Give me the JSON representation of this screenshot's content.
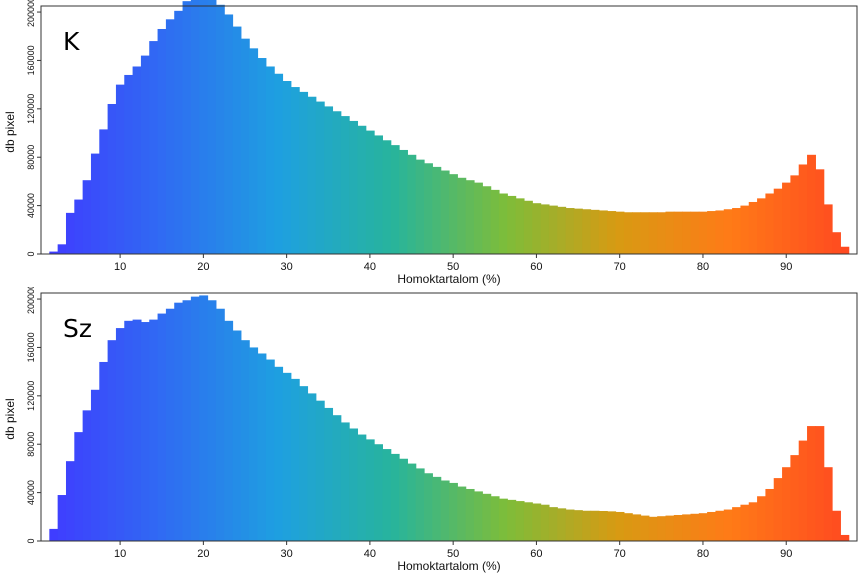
{
  "chart_data": [
    {
      "type": "bar",
      "panel_label": "K",
      "xlabel": "Homoktartalom (%)",
      "ylabel": "db pixel",
      "xlim": [
        0.5,
        98.5
      ],
      "ylim": [
        0,
        205000
      ],
      "xticks": [
        10,
        20,
        30,
        40,
        50,
        60,
        70,
        80,
        90
      ],
      "yticks": [
        0,
        40000,
        80000,
        120000,
        160000,
        200000
      ],
      "grid": false,
      "colormap": [
        "#3f3dff",
        "#2f6df2",
        "#1ea0e0",
        "#27b49c",
        "#7dbd3a",
        "#d89a13",
        "#ff7a17",
        "#ff4a20"
      ],
      "x": [
        2,
        3,
        4,
        5,
        6,
        7,
        8,
        9,
        10,
        11,
        12,
        13,
        14,
        15,
        16,
        17,
        18,
        19,
        20,
        21,
        22,
        23,
        24,
        25,
        26,
        27,
        28,
        29,
        30,
        31,
        32,
        33,
        34,
        35,
        36,
        37,
        38,
        39,
        40,
        41,
        42,
        43,
        44,
        45,
        46,
        47,
        48,
        49,
        50,
        51,
        52,
        53,
        54,
        55,
        56,
        57,
        58,
        59,
        60,
        61,
        62,
        63,
        64,
        65,
        66,
        67,
        68,
        69,
        70,
        71,
        72,
        73,
        74,
        75,
        76,
        77,
        78,
        79,
        80,
        81,
        82,
        83,
        84,
        85,
        86,
        87,
        88,
        89,
        90,
        91,
        92,
        93,
        94,
        95,
        96,
        97
      ],
      "values": [
        2000,
        8000,
        34000,
        45000,
        61000,
        83000,
        103000,
        124000,
        140000,
        148000,
        155000,
        164000,
        176000,
        186000,
        194000,
        201000,
        209000,
        216000,
        219000,
        214000,
        206000,
        198000,
        188000,
        178000,
        170000,
        162000,
        155000,
        149000,
        143000,
        138000,
        134000,
        130000,
        126000,
        122000,
        118000,
        114000,
        110000,
        106000,
        102000,
        98000,
        94000,
        90000,
        86000,
        82000,
        78000,
        75000,
        72000,
        69000,
        66000,
        63000,
        61000,
        59000,
        56000,
        53000,
        50000,
        48000,
        46000,
        44000,
        42000,
        41000,
        40000,
        39000,
        38000,
        37500,
        37000,
        36500,
        36000,
        35500,
        35000,
        34500,
        34500,
        34500,
        34500,
        34500,
        35000,
        35000,
        35000,
        35000,
        35000,
        35500,
        36000,
        37000,
        38000,
        40000,
        43000,
        46000,
        50000,
        54000,
        59000,
        65000,
        74000,
        82000,
        70000,
        41000,
        18000,
        6000
      ]
    },
    {
      "type": "bar",
      "panel_label": "Sz",
      "xlabel": "Homoktartalom (%)",
      "ylabel": "db pixel",
      "xlim": [
        0.5,
        98.5
      ],
      "ylim": [
        0,
        205000
      ],
      "xticks": [
        10,
        20,
        30,
        40,
        50,
        60,
        70,
        80,
        90
      ],
      "yticks": [
        0,
        40000,
        80000,
        120000,
        160000,
        200000
      ],
      "grid": false,
      "colormap": [
        "#3f3dff",
        "#2f6df2",
        "#1ea0e0",
        "#27b49c",
        "#7dbd3a",
        "#d89a13",
        "#ff7a17",
        "#ff4a20"
      ],
      "x": [
        2,
        3,
        4,
        5,
        6,
        7,
        8,
        9,
        10,
        11,
        12,
        13,
        14,
        15,
        16,
        17,
        18,
        19,
        20,
        21,
        22,
        23,
        24,
        25,
        26,
        27,
        28,
        29,
        30,
        31,
        32,
        33,
        34,
        35,
        36,
        37,
        38,
        39,
        40,
        41,
        42,
        43,
        44,
        45,
        46,
        47,
        48,
        49,
        50,
        51,
        52,
        53,
        54,
        55,
        56,
        57,
        58,
        59,
        60,
        61,
        62,
        63,
        64,
        65,
        66,
        67,
        68,
        69,
        70,
        71,
        72,
        73,
        74,
        75,
        76,
        77,
        78,
        79,
        80,
        81,
        82,
        83,
        84,
        85,
        86,
        87,
        88,
        89,
        90,
        91,
        92,
        93,
        94,
        95,
        96,
        97
      ],
      "values": [
        10000,
        38000,
        66000,
        90000,
        108000,
        125000,
        148000,
        166000,
        176000,
        182000,
        183000,
        181000,
        183000,
        188000,
        192000,
        197000,
        199000,
        202000,
        203000,
        199000,
        192000,
        182000,
        174000,
        166000,
        160000,
        155000,
        150000,
        144000,
        139000,
        134000,
        128000,
        122000,
        116000,
        110000,
        104000,
        98000,
        93000,
        88000,
        84000,
        80000,
        76000,
        72000,
        68000,
        64000,
        60000,
        56000,
        53000,
        50000,
        48000,
        45000,
        43000,
        41000,
        39000,
        37000,
        35000,
        34000,
        33000,
        32000,
        31000,
        30000,
        28000,
        27000,
        26000,
        25500,
        25000,
        25000,
        24800,
        24500,
        24000,
        23000,
        22000,
        21000,
        20000,
        20500,
        21000,
        21500,
        22000,
        22500,
        23000,
        24000,
        25000,
        26000,
        28000,
        30000,
        32000,
        37000,
        43000,
        52000,
        61000,
        71000,
        83000,
        95000,
        95000,
        61000,
        25000,
        5000
      ]
    }
  ]
}
